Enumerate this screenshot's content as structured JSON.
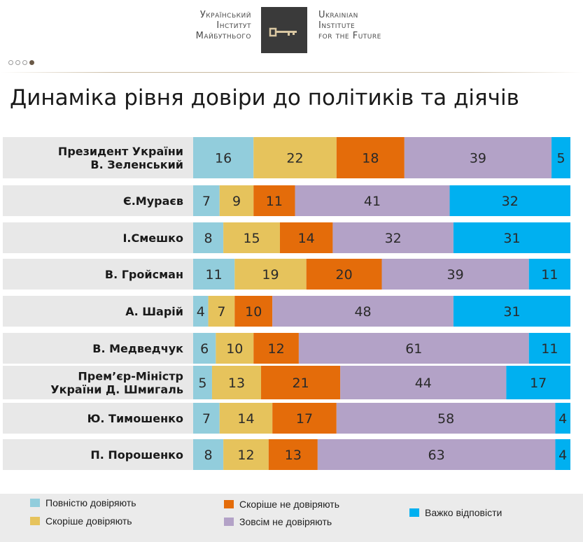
{
  "header": {
    "org_ua_lines": [
      "Український",
      "Інститут",
      "Майбутнього"
    ],
    "org_en_lines": [
      "Ukrainian",
      "Institute",
      "for the Future"
    ]
  },
  "colors": {
    "full_trust": "#92cddc",
    "rather_trust": "#e6c35c",
    "rather_distrust": "#e46c0a",
    "no_trust": "#b3a2c7",
    "hard_to_say": "#00b0f0",
    "row_band": "#e8e8e8"
  },
  "chart_data": {
    "type": "bar",
    "orientation": "horizontal",
    "stacked": true,
    "title": "Динаміка рівня довіри до політиків та діячів",
    "categories": [
      "Президент України В. Зеленський",
      "Є.Мураєв",
      "І.Смешко",
      "В. Гройсман",
      "А. Шарій",
      "В. Медведчук",
      "Прем’єр-Міністр України Д. Шмигаль",
      "Ю. Тимошенко",
      "П. Порошенко"
    ],
    "category_lines": [
      [
        "Президент України",
        "В. Зеленський"
      ],
      [
        "Є.Мураєв"
      ],
      [
        "І.Смешко"
      ],
      [
        "В. Гройсман"
      ],
      [
        "А. Шарій"
      ],
      [
        "В. Медведчук"
      ],
      [
        "Прем’єр-Міністр",
        "України Д. Шмигаль"
      ],
      [
        "Ю. Тимошенко"
      ],
      [
        "П. Порошенко"
      ]
    ],
    "series": [
      {
        "name": "Повністю довіряють",
        "color": "#92cddc",
        "values": [
          16,
          7,
          8,
          11,
          4,
          6,
          5,
          7,
          8
        ]
      },
      {
        "name": "Скоріше довіряють",
        "color": "#e6c35c",
        "values": [
          22,
          9,
          15,
          19,
          7,
          10,
          13,
          14,
          12
        ]
      },
      {
        "name": "Скоріше не довіряють",
        "color": "#e46c0a",
        "values": [
          18,
          11,
          14,
          20,
          10,
          12,
          21,
          17,
          13
        ]
      },
      {
        "name": "Зовсім не довіряють",
        "color": "#b3a2c7",
        "values": [
          39,
          41,
          32,
          39,
          48,
          61,
          44,
          58,
          63
        ]
      },
      {
        "name": "Важко відповісти",
        "color": "#00b0f0",
        "values": [
          5,
          32,
          31,
          11,
          31,
          11,
          17,
          4,
          4
        ]
      }
    ],
    "xlim": [
      0,
      100
    ],
    "grid": false,
    "legend_position": "bottom"
  },
  "legend_order": [
    0,
    1,
    2,
    3,
    4
  ]
}
